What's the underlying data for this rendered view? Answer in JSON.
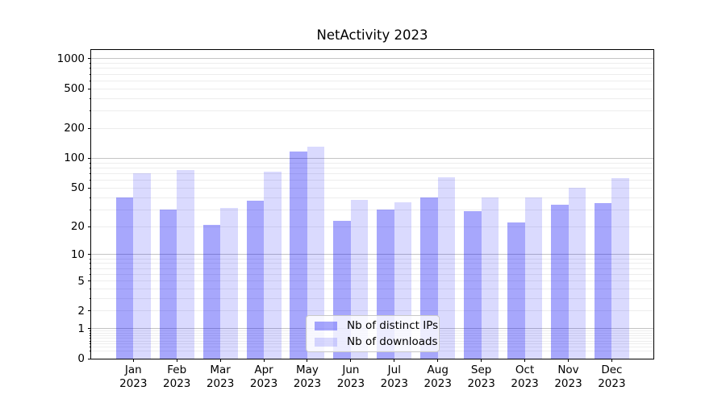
{
  "figure": {
    "background": "#ffffff"
  },
  "chart_data": {
    "type": "bar",
    "title": "NetActivity 2023",
    "xlabel": "",
    "ylabel": "",
    "yscale": "log1p",
    "ylim": [
      0,
      1226
    ],
    "yticks": [
      0,
      1,
      2,
      5,
      10,
      20,
      50,
      100,
      200,
      500,
      1000
    ],
    "grid": {
      "which": "both",
      "major_color": "#c4c4c4",
      "minor_color": "#ededed",
      "major_at": [
        1,
        10,
        100,
        1000
      ]
    },
    "categories": [
      "Jan 2023",
      "Feb 2023",
      "Mar 2023",
      "Apr 2023",
      "May 2023",
      "Jun 2023",
      "Jul 2023",
      "Aug 2023",
      "Sep 2023",
      "Oct 2023",
      "Nov 2023",
      "Dec 2023"
    ],
    "series": [
      {
        "name": "Nb of distinct IPs",
        "color": "#a7a7fb",
        "css_fill": "rgba(0,0,245,0.345)",
        "values": [
          40,
          30,
          21,
          37,
          118,
          23,
          30,
          40,
          29,
          22,
          34,
          35
        ]
      },
      {
        "name": "Nb of downloads",
        "color": "#dadafd",
        "css_fill": "rgba(0,0,245,0.145)",
        "values": [
          70,
          76,
          31,
          73,
          132,
          38,
          36,
          64,
          40,
          40,
          50,
          63
        ]
      }
    ],
    "legend_position": "lower center"
  }
}
